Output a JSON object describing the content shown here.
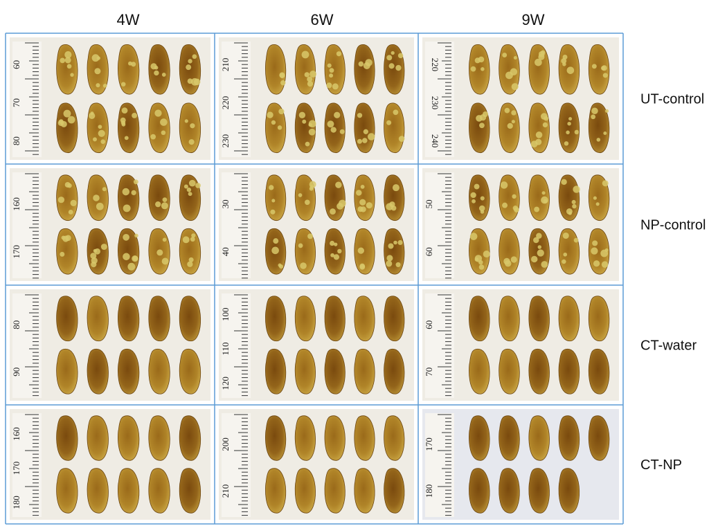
{
  "columns": [
    "4W",
    "6W",
    "9W"
  ],
  "rows": [
    {
      "label": "UT-control",
      "cells": [
        {
          "ruler": [
            "60",
            "70",
            "80"
          ]
        },
        {
          "ruler": [
            "210",
            "220",
            "230"
          ]
        },
        {
          "ruler": [
            "220",
            "230",
            "240"
          ]
        }
      ]
    },
    {
      "label": "NP-control",
      "cells": [
        {
          "ruler": [
            "160",
            "170"
          ]
        },
        {
          "ruler": [
            "30",
            "40"
          ]
        },
        {
          "ruler": [
            "50",
            "60"
          ]
        }
      ]
    },
    {
      "label": "CT-water",
      "cells": [
        {
          "ruler": [
            "80",
            "90"
          ]
        },
        {
          "ruler": [
            "100",
            "110",
            "120"
          ]
        },
        {
          "ruler": [
            "60",
            "70"
          ]
        }
      ]
    },
    {
      "label": "CT-NP",
      "cells": [
        {
          "ruler": [
            "160",
            "170",
            "180"
          ]
        },
        {
          "ruler": [
            "200",
            "210"
          ]
        },
        {
          "ruler": [
            "170",
            "180"
          ]
        }
      ]
    }
  ]
}
